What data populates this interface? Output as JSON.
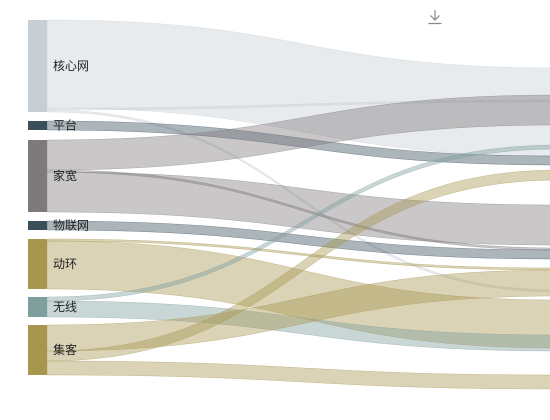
{
  "toolbox": {
    "download_icon": "download-icon"
  },
  "chart_data": {
    "type": "sankey",
    "nodes": [
      {
        "name": "核心网",
        "value": 92,
        "color": "#c7cfd5"
      },
      {
        "name": "平台",
        "value": 9,
        "color": "#3a4f5a"
      },
      {
        "name": "家宽",
        "value": 72,
        "color": "#7e7a7c"
      },
      {
        "name": "物联网",
        "value": 9,
        "color": "#3a4f5a"
      },
      {
        "name": "动环",
        "value": 50,
        "color": "#a8954e"
      },
      {
        "name": "无线",
        "value": 20,
        "color": "#7f9e9e"
      },
      {
        "name": "集客",
        "value": 50,
        "color": "#a8954e"
      }
    ],
    "links": [
      {
        "source": "核心网",
        "value": 88,
        "color": "#c7cfd5"
      },
      {
        "source": "核心网",
        "value": 2,
        "color": "#c7cfd5"
      },
      {
        "source": "核心网",
        "value": 2,
        "color": "#c7cfd5"
      },
      {
        "source": "平台",
        "value": 9,
        "color": "#3a4f5a"
      },
      {
        "source": "家宽",
        "value": 30,
        "color": "#7e7a7c"
      },
      {
        "source": "家宽",
        "value": 2,
        "color": "#7e7a7c"
      },
      {
        "source": "家宽",
        "value": 40,
        "color": "#7e7a7c"
      },
      {
        "source": "物联网",
        "value": 9,
        "color": "#3a4f5a"
      },
      {
        "source": "动环",
        "value": 2,
        "color": "#a8954e"
      },
      {
        "source": "动环",
        "value": 48,
        "color": "#a8954e"
      },
      {
        "source": "无线",
        "value": 4,
        "color": "#7f9e9e"
      },
      {
        "source": "无线",
        "value": 16,
        "color": "#7f9e9e"
      },
      {
        "source": "集客",
        "value": 26,
        "color": "#a8954e"
      },
      {
        "source": "集客",
        "value": 10,
        "color": "#a8954e"
      },
      {
        "source": "集客",
        "value": 14,
        "color": "#a8954e"
      }
    ]
  }
}
